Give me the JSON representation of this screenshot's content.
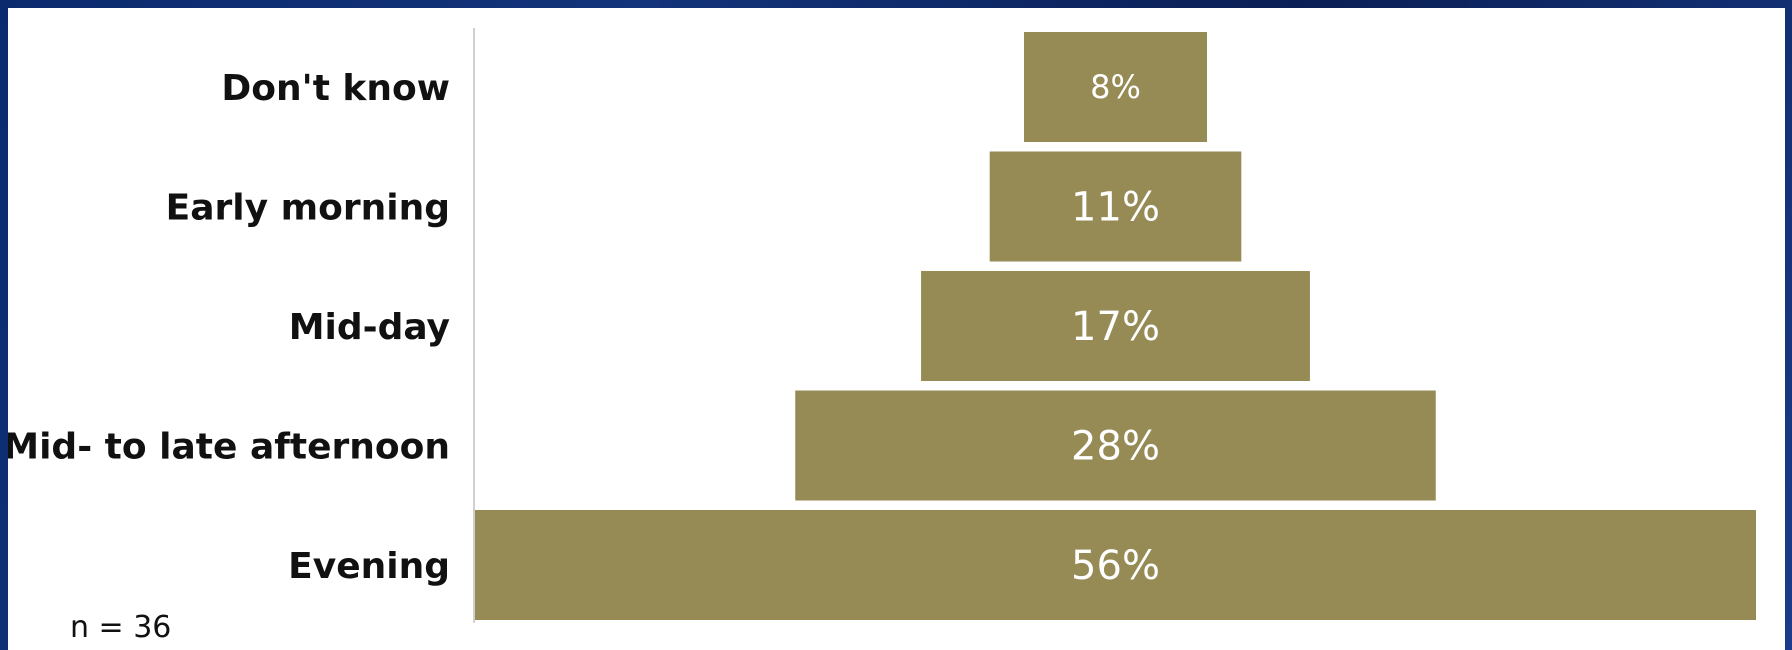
{
  "chart_data": {
    "type": "bar",
    "orientation": "horizontal",
    "layout": "centered-funnel",
    "categories": [
      "Don't know",
      "Early morning",
      "Mid-day",
      "Mid- to late afternoon",
      "Evening"
    ],
    "values": [
      8,
      11,
      17,
      28,
      56
    ],
    "data_labels": [
      "8%",
      "11%",
      "17%",
      "28%",
      "56%"
    ],
    "unit": "%",
    "xlim": [
      0,
      56
    ],
    "bar_color": "#968a55",
    "grid": false,
    "legend": "none",
    "note": "n = 36"
  }
}
